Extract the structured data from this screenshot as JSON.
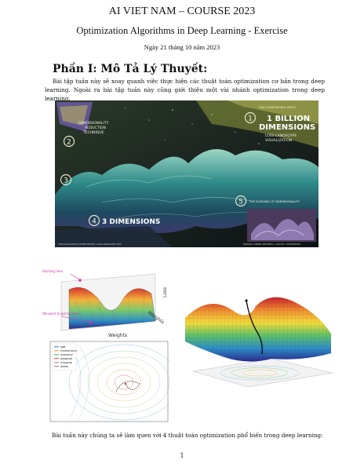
{
  "header": {
    "title": "AI VIET NAM – COURSE 2023",
    "subtitle": "Optimization Algorithms in Deep Learning - Exercise",
    "date": "Ngày 21 tháng 10 năm 2023"
  },
  "section": {
    "title": "Phần I: Mô Tả Lý Thuyết:",
    "paragraph": "Bài tập tuần này sẽ xoay quanh việc thực hiện các thuật toán optimization cơ bản trong deep learning. Ngoài ra bài tập tuần này cũng giới thiệu một vài nhánh optimization trong deep learning."
  },
  "infographic": {
    "badge1": "1",
    "big_title_1": "1 BILLION",
    "big_title_2": "DIMENSIONS",
    "sub1": "LOSS LANDSCAPE",
    "sub2": "VISUALIZATION",
    "badge2": "2",
    "dimred_1": "DIMENSIONALITY",
    "dimred_2": "REDUCTION",
    "dimred_3": "TECHNIQUE",
    "badge3": "3",
    "badge4": "4",
    "three_dim": "3 DIMENSIONS",
    "badge5": "5",
    "blessing": "THE BLESSING OF DIMENSIONALITY",
    "footer_left": "VISUALIZATION BY JAVIER IDEAMI | LOSSLANDSCAPE.COM",
    "footer_right": "FINDING A MINIMA BECOMES A 'LOGICAL' 'DESCENDING'",
    "high_dim": "HIGH DIMENSIONAL SPACE"
  },
  "fig_left": {
    "starting_here": "Starting here",
    "want_goal": "We want to get to here",
    "loss": "Loss",
    "weights_side": "Weights",
    "weights_bottom": "Weights",
    "legend": [
      "sgd",
      "momentum",
      "nesterov",
      "adagrad",
      "rmsprop",
      "adam"
    ],
    "legend_colors": [
      "#1f77b4",
      "#ff7f0e",
      "#2ca02c",
      "#d62728",
      "#9467bd",
      "#8c564b"
    ]
  },
  "bottom": {
    "text": "Bài tuần này chúng ta sẽ làm quen với 4 thuật toán optimization phổ biến trong deep learning:"
  },
  "page": {
    "number": "1"
  }
}
